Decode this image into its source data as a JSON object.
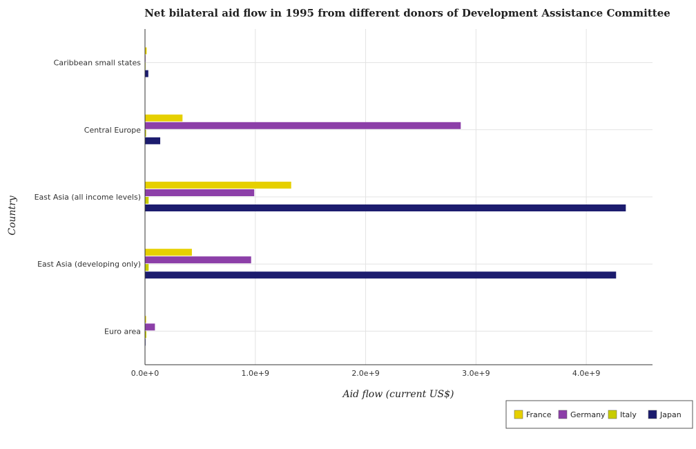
{
  "chart_data": {
    "type": "bar",
    "orientation": "horizontal",
    "title": "Net bilateral aid flow in 1995 from different donors of Development Assistance Committee",
    "xlabel": "Aid flow (current US$)",
    "ylabel": "Country",
    "categories": [
      "Caribbean small states",
      "Central Europe",
      "East Asia (all income levels)",
      "East Asia (developing only)",
      "Euro area"
    ],
    "xlim": [
      0,
      4600000000
    ],
    "xticks": [
      0,
      1000000000,
      2000000000,
      3000000000,
      4000000000
    ],
    "xtick_labels": [
      "0.0e+0",
      "1.0e+9",
      "2.0e+9",
      "3.0e+9",
      "4.0e+9"
    ],
    "grid": true,
    "legend_position": "bottom-right",
    "series": [
      {
        "name": "France",
        "color": "#e6d000",
        "values": [
          15000000,
          340000000,
          1325000000,
          425000000,
          10000000
        ]
      },
      {
        "name": "Germany",
        "color": "#8c3fa8",
        "values": [
          1000000,
          2862000000,
          990000000,
          962000000,
          90000000
        ]
      },
      {
        "name": "Italy",
        "color": "#c8cc00",
        "values": [
          5000000,
          10000000,
          33000000,
          33000000,
          12000000
        ]
      },
      {
        "name": "Japan",
        "color": "#1c1c6e",
        "values": [
          30000000,
          138000000,
          4358000000,
          4270000000,
          3000000
        ]
      }
    ]
  }
}
